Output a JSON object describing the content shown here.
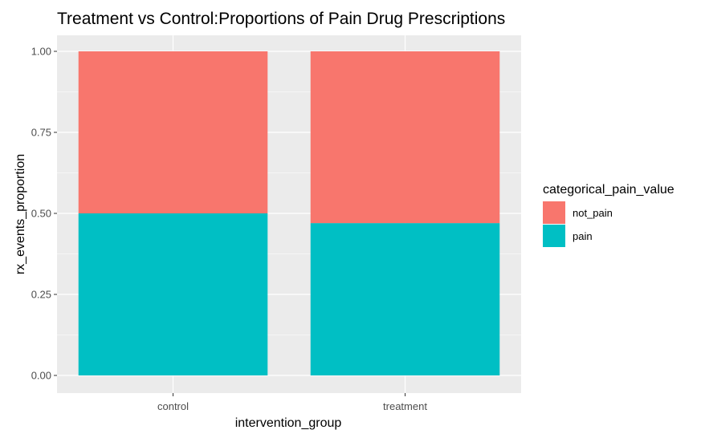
{
  "chart_data": {
    "type": "bar",
    "stacked": true,
    "title": "Treatment vs Control:Proportions of Pain Drug Prescriptions",
    "xlabel": "intervention_group",
    "ylabel": "rx_events_proportion",
    "categories": [
      "control",
      "treatment"
    ],
    "series": [
      {
        "name": "not_pain",
        "color": "#F8766D",
        "values": [
          0.5,
          0.53
        ]
      },
      {
        "name": "pain",
        "color": "#00BFC4",
        "values": [
          0.5,
          0.47
        ]
      }
    ],
    "ylim": [
      0,
      1
    ],
    "yticks": [
      "0.00",
      "0.25",
      "0.50",
      "0.75",
      "1.00"
    ],
    "ytick_values": [
      0,
      0.25,
      0.5,
      0.75,
      1.0
    ],
    "grid": true,
    "legend": {
      "title": "categorical_pain_value",
      "placement": "right",
      "entries": [
        "not_pain",
        "pain"
      ]
    },
    "colors": {
      "panel_background": "#EBEBEB",
      "grid": "#FFFFFF"
    }
  }
}
